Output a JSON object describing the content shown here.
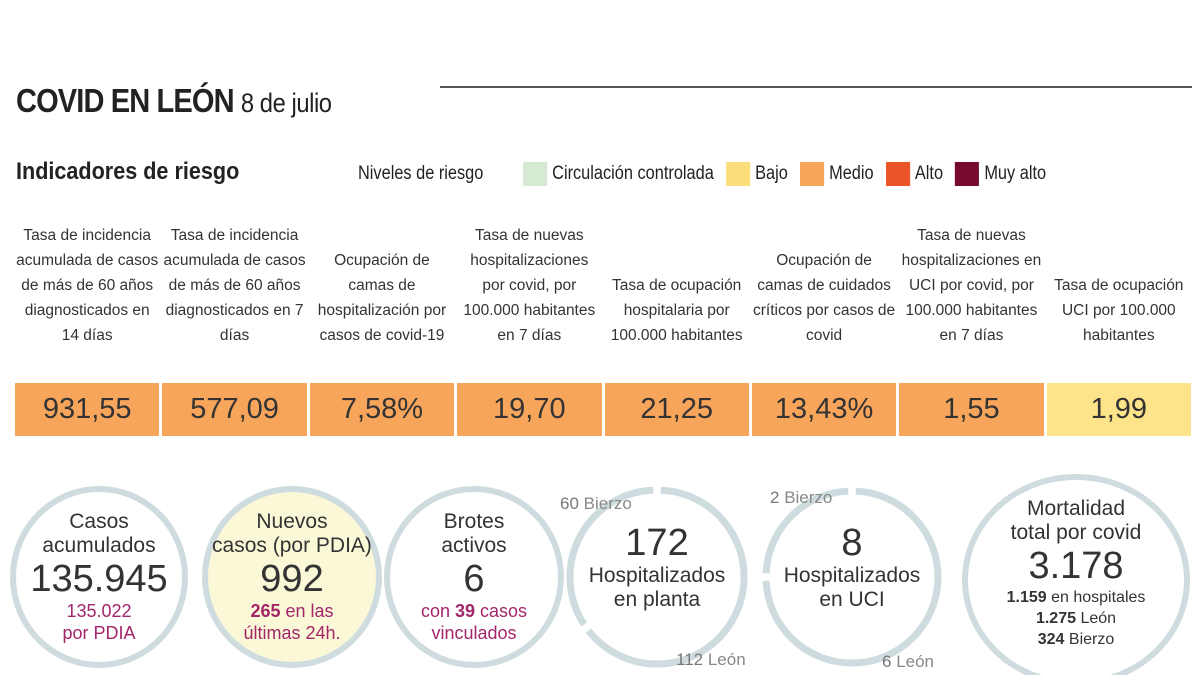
{
  "title": "COVID EN LEÓN",
  "date": "8 de julio",
  "subtitle": "Indicadores de riesgo",
  "legend": {
    "label": "Niveles de riesgo",
    "items": [
      {
        "label": "Circulación controlada",
        "color": "#d5e9d3"
      },
      {
        "label": "Bajo",
        "color": "#fbdd7c"
      },
      {
        "label": "Medio",
        "color": "#f8a55c"
      },
      {
        "label": "Alto",
        "color": "#ea5527"
      },
      {
        "label": "Muy alto",
        "color": "#760b2f"
      }
    ]
  },
  "indicators": [
    {
      "label": "Tasa de incidencia acumulada de casos de más de 60 años diagnosticados en 14 días",
      "value": "931,55",
      "level": "Medio",
      "color": "#f8a55c"
    },
    {
      "label": "Tasa de incidencia acumulada de casos de más de 60 años diagnosticados en 7 días",
      "value": "577,09",
      "level": "Medio",
      "color": "#f8a55c"
    },
    {
      "label": "Ocupación de camas de hospitalización por casos de covid-19",
      "value": "7,58%",
      "level": "Medio",
      "color": "#f8a55c"
    },
    {
      "label": "Tasa de nuevas hospitalizaciones por covid, por 100.000 habitantes en 7 días",
      "value": "19,70",
      "level": "Medio",
      "color": "#f8a55c"
    },
    {
      "label": "Tasa de ocupación hospitalaria por 100.000 habitantes",
      "value": "21,25",
      "level": "Medio",
      "color": "#f8a55c"
    },
    {
      "label": "Ocupación de camas de cuidados críticos por casos de covid",
      "value": "13,43%",
      "level": "Medio",
      "color": "#f8a55c"
    },
    {
      "label": "Tasa de nuevas hospitalizaciones en UCI por covid, por 100.000 habitantes en 7 días",
      "value": "1,55",
      "level": "Medio",
      "color": "#f8a55c"
    },
    {
      "label": "Tasa de ocupación UCI por 100.000 habitantes",
      "value": "1,99",
      "level": "Bajo",
      "color": "#fde38a"
    }
  ],
  "stats": {
    "casos": {
      "label1": "Casos",
      "label2": "acumulados",
      "value": "135.945",
      "sub_num": "135.022",
      "sub_text": "por PDIA"
    },
    "nuevos": {
      "label1": "Nuevos",
      "label2": "casos (por PDIA)",
      "value": "992",
      "sub_num": "265",
      "sub_text1": " en las",
      "sub_text2": "últimas 24h."
    },
    "brotes": {
      "label1": "Brotes",
      "label2": "activos",
      "value": "6",
      "sub_pre": "con ",
      "sub_num": "39",
      "sub_text1": " casos",
      "sub_text2": "vinculados"
    },
    "planta": {
      "value": "172",
      "label1": "Hospitalizados",
      "label2": "en planta",
      "bierzo_num": "60",
      "bierzo": " Bierzo",
      "leon_num": "112",
      "leon": " León",
      "bierzo_value": 60,
      "leon_value": 112
    },
    "uci": {
      "value": "8",
      "label1": "Hospitalizados",
      "label2": "en UCI",
      "bierzo_num": "2",
      "bierzo": " Bierzo",
      "leon_num": "6",
      "leon": " León",
      "bierzo_value": 2,
      "leon_value": 6
    },
    "mortalidad": {
      "label1": "Mortalidad",
      "label2": "total por covid",
      "value": "3.178",
      "hosp_num": "1.159",
      "hosp": " en hospitales",
      "leon_num": "1.275",
      "leon": " León",
      "bierzo_num": "324",
      "bierzo": " Bierzo"
    }
  }
}
